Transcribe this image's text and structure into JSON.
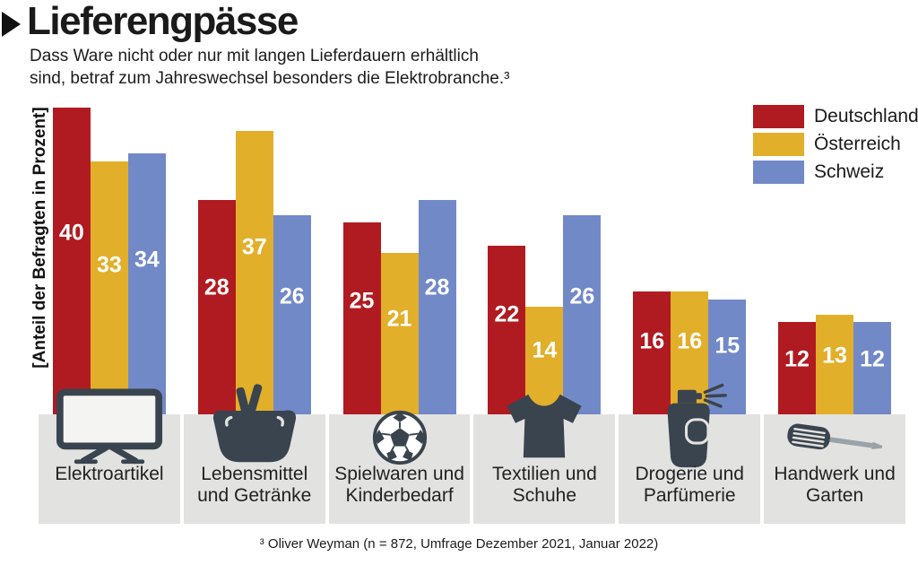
{
  "header": {
    "title": "Lieferengpässe",
    "subtitle": "Dass Ware nicht oder nur mit langen Lieferdauern erhältlich sind, betraf zum Jahreswechsel besonders die Elektrobranche.³"
  },
  "colors": {
    "deutschland": "#b01b21",
    "oesterreich": "#e2af2a",
    "schweiz": "#7289c8",
    "icon_dark": "#3a444e",
    "category_box": "#e2e2e0",
    "value_label": "#ffffff"
  },
  "chart_data": {
    "type": "bar",
    "title": "Lieferengpässe",
    "ylabel": "[Anteil der Befragten in Prozent]",
    "ylim": [
      0,
      42
    ],
    "grid": false,
    "legend_position": "top-right",
    "value_labels": "inside-bars, white",
    "categories": [
      "Elektroartikel",
      "Lebensmittel und Getränke",
      "Spielwaren und Kinderbedarf",
      "Textilien und Schuhe",
      "Drogerie und Parfümerie",
      "Handwerk und Garten"
    ],
    "category_icons": [
      "tv-icon",
      "shopping-basket-icon",
      "soccer-ball-icon",
      "tshirt-icon",
      "spray-bottle-icon",
      "screwdriver-icon"
    ],
    "series": [
      {
        "name": "Deutschland",
        "color": "#b01b21",
        "values": [
          40,
          28,
          25,
          22,
          16,
          12
        ]
      },
      {
        "name": "Österreich",
        "color": "#e2af2a",
        "values": [
          33,
          37,
          21,
          14,
          16,
          13
        ]
      },
      {
        "name": "Schweiz",
        "color": "#7289c8",
        "values": [
          34,
          26,
          28,
          26,
          15,
          12
        ]
      }
    ],
    "footnote": "³ Oliver Weyman (n = 872, Umfrage Dezember 2021, Januar 2022)"
  }
}
